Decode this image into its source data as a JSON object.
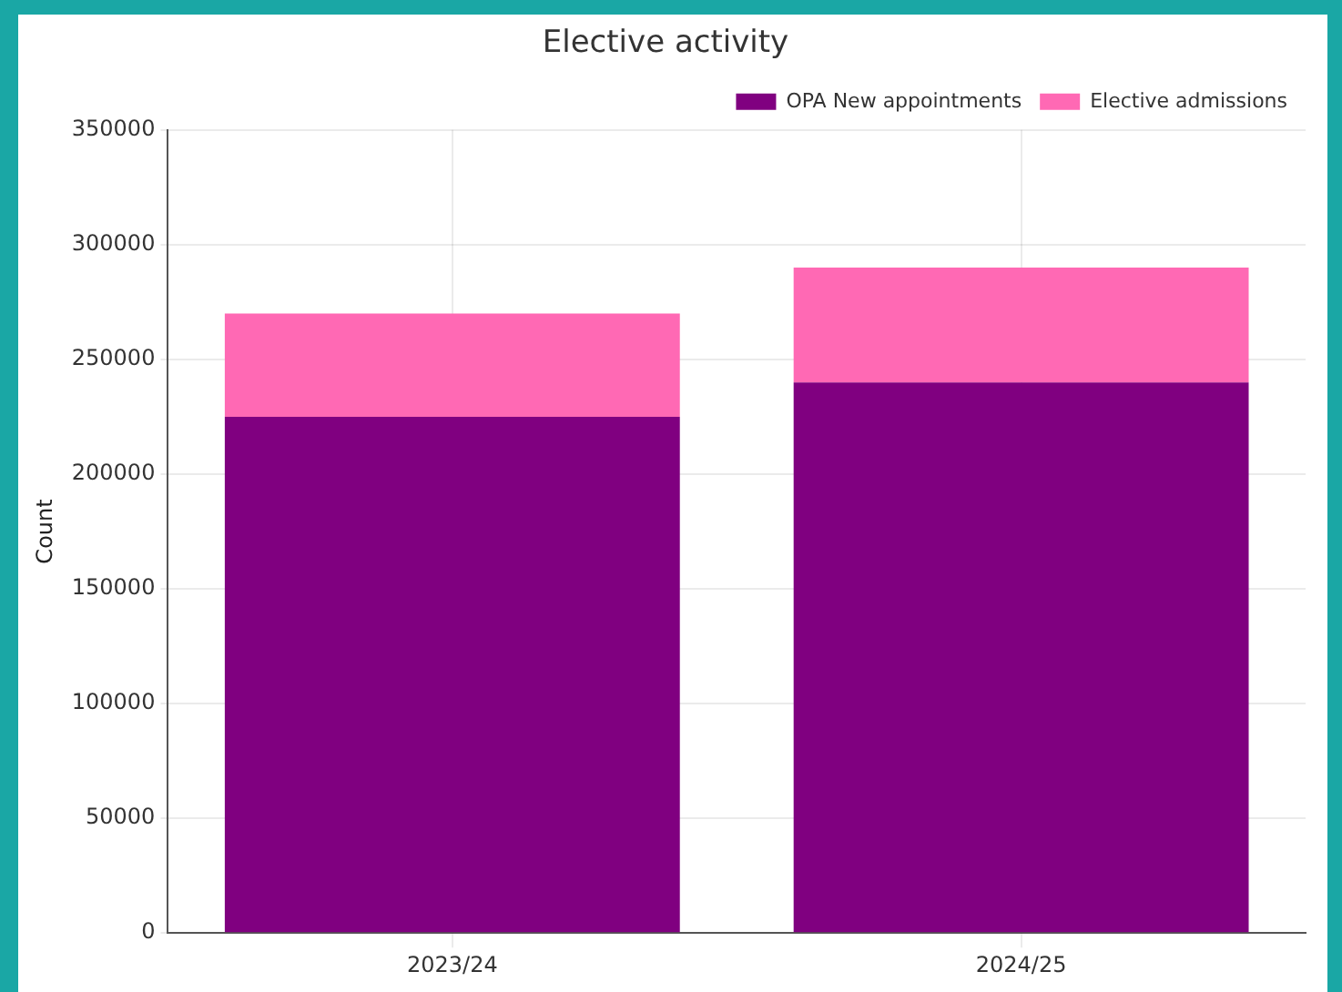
{
  "chart_data": {
    "type": "bar",
    "title": "Elective activity",
    "ylabel": "Count",
    "categories": [
      "2023/24",
      "2024/25"
    ],
    "stacked": true,
    "series": [
      {
        "name": "OPA New appointments",
        "color": "#800080",
        "values": [
          225000,
          240000
        ]
      },
      {
        "name": "Elective admissions",
        "color": "#ff69b4",
        "values": [
          45000,
          50000
        ]
      }
    ],
    "ylim": [
      0,
      350000
    ],
    "yticks": [
      0,
      50000,
      100000,
      150000,
      200000,
      250000,
      300000,
      350000
    ],
    "grid": true,
    "legend": "top right"
  }
}
